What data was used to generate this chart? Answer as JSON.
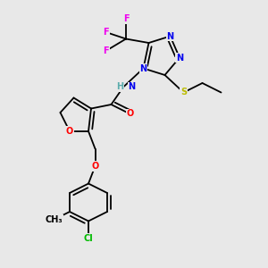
{
  "bg_color": "#ebebeb",
  "atom_colors": {
    "C": "#000000",
    "H": "#5aacac",
    "N": "#0000ee",
    "O": "#ff0000",
    "F": "#ee00ee",
    "S": "#bbbb00",
    "Cl": "#00bb00"
  },
  "bond_color": "#000000",
  "bond_width": 1.3,
  "fig_bg": "#e8e8e8"
}
